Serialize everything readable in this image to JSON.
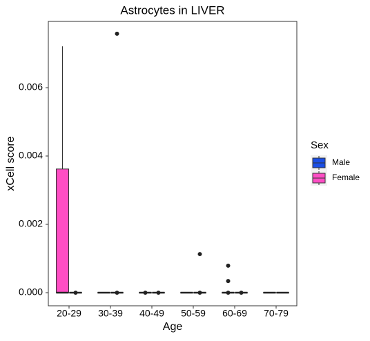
{
  "chart_data": {
    "type": "box",
    "title": "Astrocytes in LIVER",
    "x_label": "Age",
    "y_label": "xCell score",
    "legend_title": "Sex",
    "legend_position": "right",
    "grid": false,
    "categories": [
      "20-29",
      "30-39",
      "40-49",
      "50-59",
      "60-69",
      "70-79"
    ],
    "ylim": [
      -0.000384,
      0.00794
    ],
    "yticks": [
      {
        "value": 0,
        "label": "0.000"
      },
      {
        "value": 0.002,
        "label": "0.002"
      },
      {
        "value": 0.004,
        "label": "0.004"
      },
      {
        "value": 0.006,
        "label": "0.006"
      }
    ],
    "series": [
      {
        "name": "Male",
        "color": "#1a4ee6",
        "min": [
          0,
          0,
          0,
          0,
          0,
          0
        ],
        "q1": [
          0,
          0,
          0,
          0,
          0,
          0
        ],
        "median": [
          0,
          0,
          0,
          0,
          0,
          0
        ],
        "q3": [
          0,
          0,
          0,
          0,
          0,
          0
        ],
        "max": [
          0,
          0,
          0,
          0,
          0,
          0
        ],
        "outliers": [
          [
            0
          ],
          [
            0.00758,
            0
          ],
          [
            0
          ],
          [
            0.00113,
            0
          ],
          [
            0
          ],
          []
        ]
      },
      {
        "name": "Female",
        "color": "#ff4dc4",
        "min": [
          0,
          0,
          0,
          0,
          0,
          0
        ],
        "q1": [
          0,
          0,
          0,
          0,
          0,
          0
        ],
        "median": [
          0,
          0,
          0,
          0,
          0,
          0
        ],
        "q3": [
          0.00362,
          0,
          0,
          0,
          0,
          0
        ],
        "max": [
          0.00721,
          0,
          0,
          0,
          0,
          0
        ],
        "outliers": [
          [],
          [],
          [
            0
          ],
          [],
          [
            0.00079,
            0.00034,
            0
          ],
          []
        ]
      }
    ]
  }
}
